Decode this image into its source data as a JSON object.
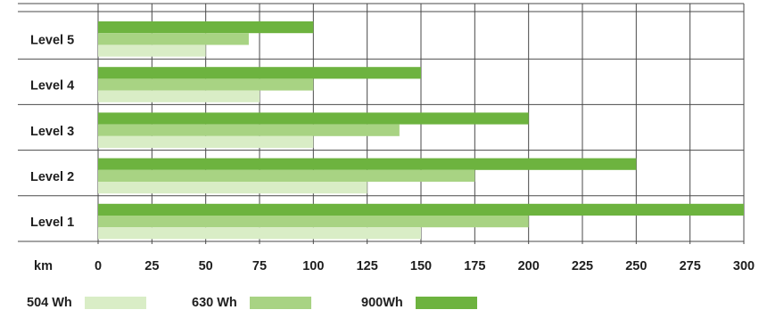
{
  "chart_data": {
    "type": "bar",
    "orientation": "horizontal",
    "categories": [
      "Level 5",
      "Level 4",
      "Level 3",
      "Level 2",
      "Level 1"
    ],
    "series": [
      {
        "name": "900Wh",
        "color": "#6db33f",
        "values": [
          100,
          150,
          200,
          250,
          300
        ]
      },
      {
        "name": "630 Wh",
        "color": "#a8d383",
        "values": [
          70,
          100,
          140,
          175,
          200
        ]
      },
      {
        "name": "504 Wh",
        "color": "#d9edc6",
        "values": [
          50,
          75,
          100,
          125,
          150
        ]
      }
    ],
    "x_unit_label": "km",
    "x_ticks": [
      0,
      25,
      50,
      75,
      100,
      125,
      150,
      175,
      200,
      225,
      250,
      275,
      300
    ],
    "xlim": [
      0,
      300
    ],
    "grid": true,
    "legend_position": "bottom"
  },
  "legend": [
    {
      "label": "504 Wh",
      "color": "#d9edc6"
    },
    {
      "label": "630 Wh",
      "color": "#a8d383"
    },
    {
      "label": "900Wh",
      "color": "#6db33f"
    }
  ]
}
